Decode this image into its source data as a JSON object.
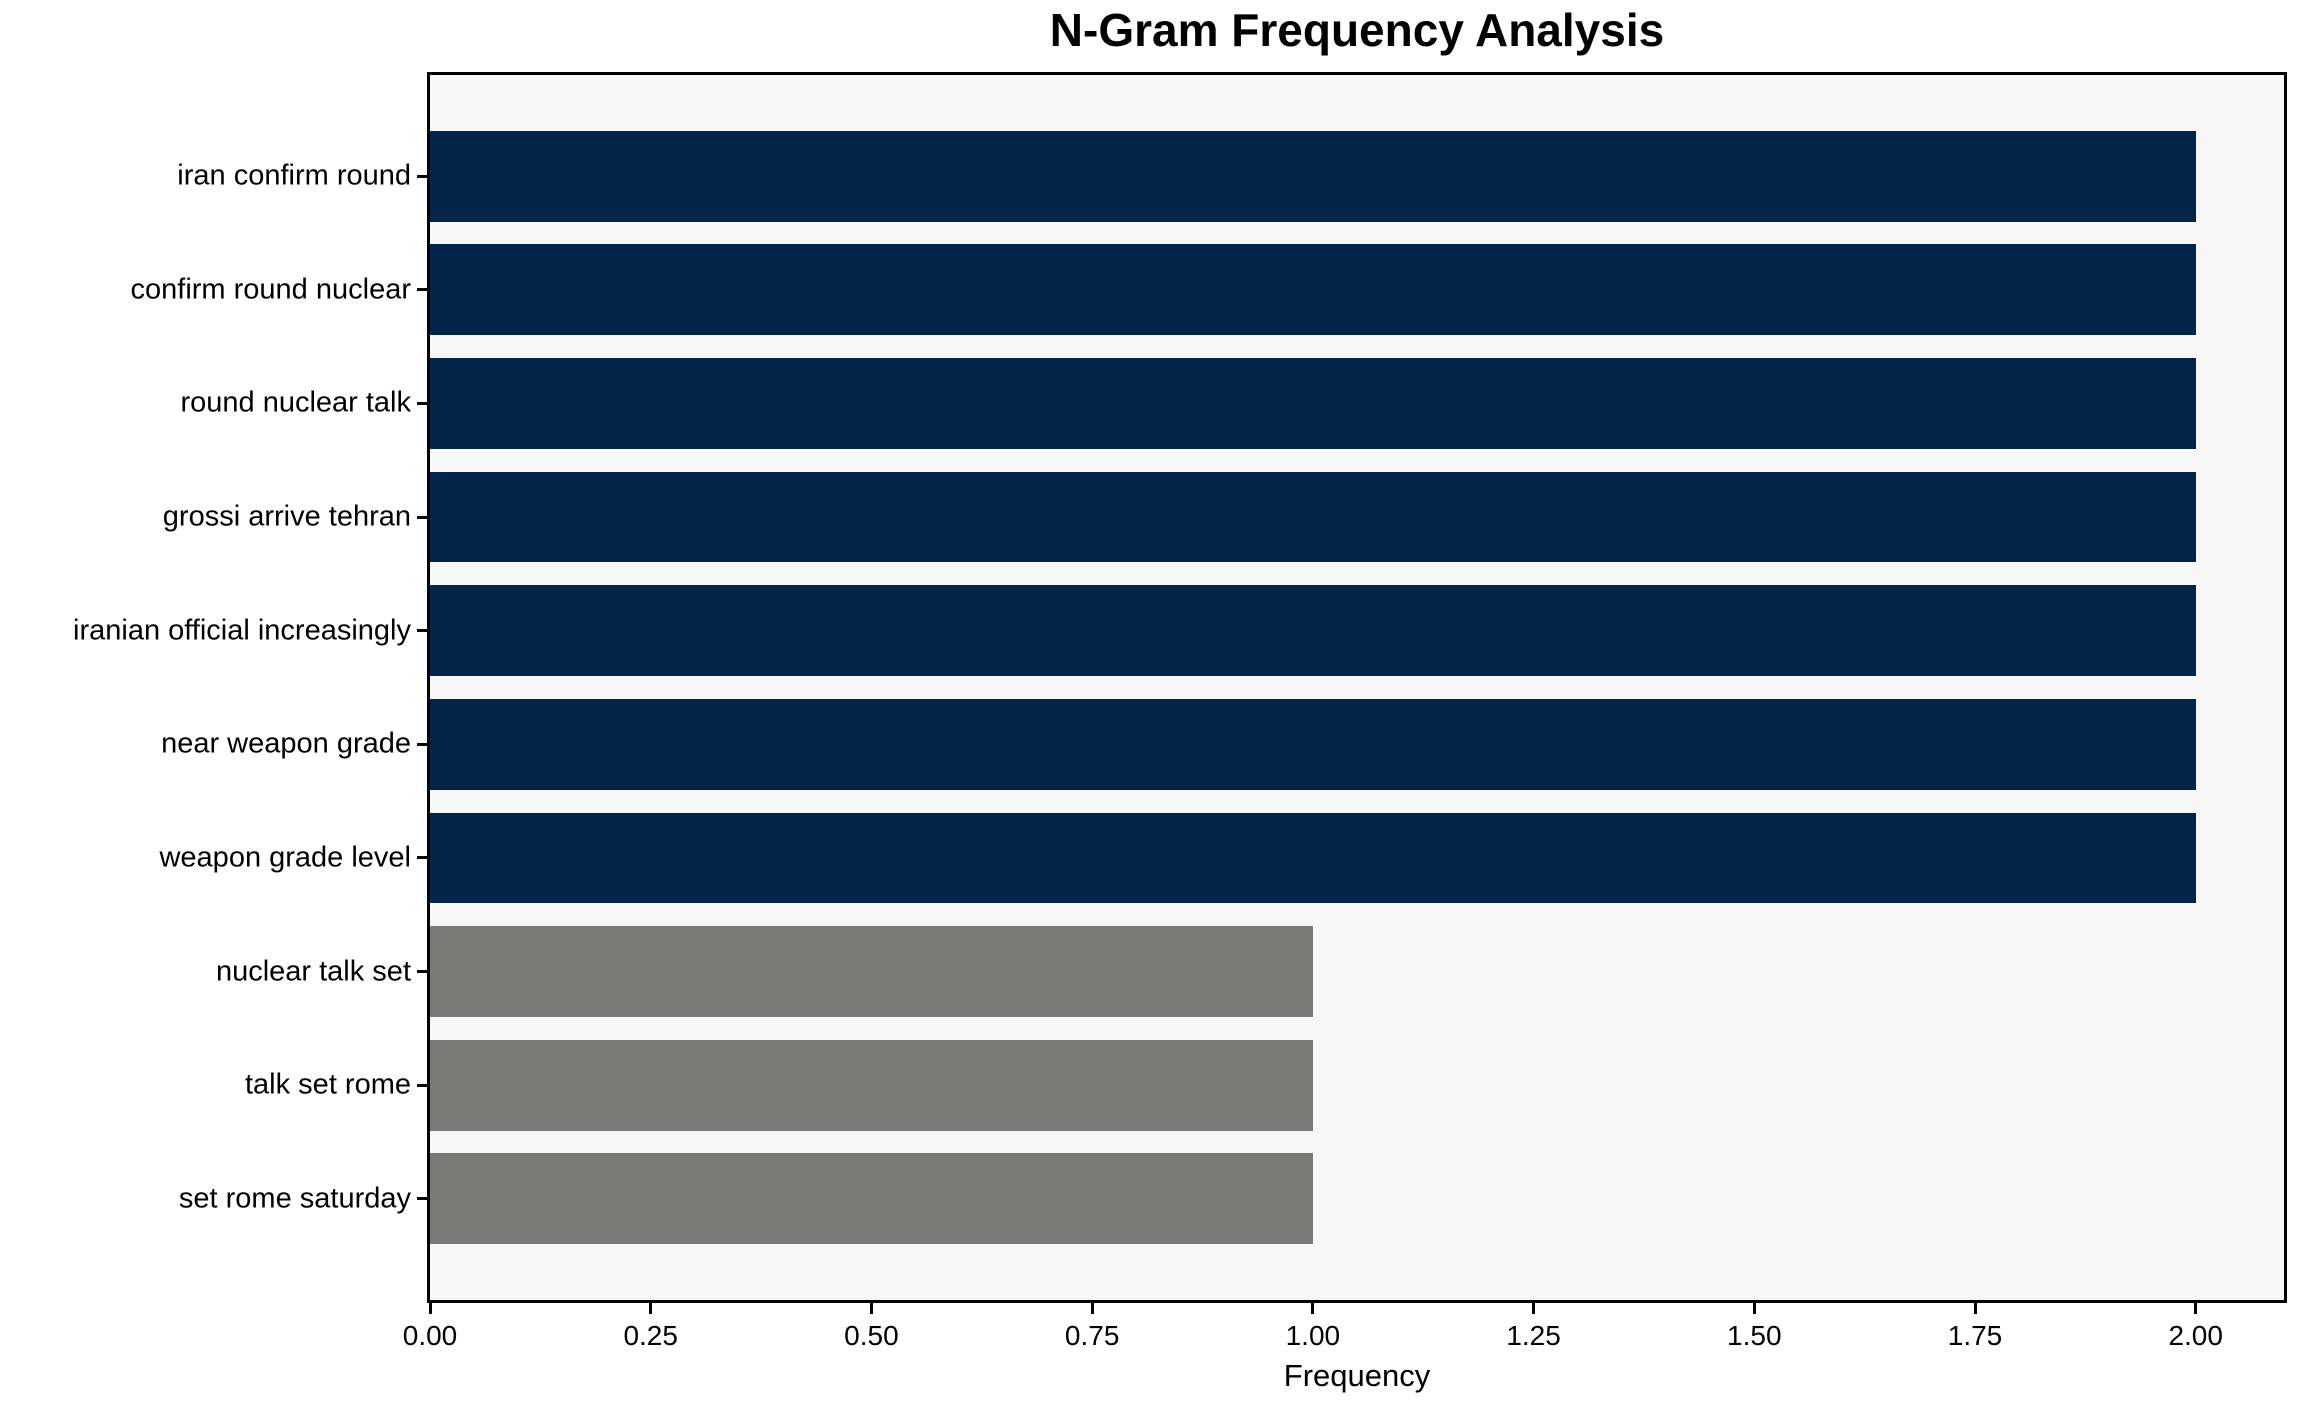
{
  "chart_data": {
    "type": "bar",
    "orientation": "horizontal",
    "title": "N-Gram Frequency Analysis",
    "xlabel": "Frequency",
    "ylabel": "",
    "categories": [
      "iran confirm round",
      "confirm round nuclear",
      "round nuclear talk",
      "grossi arrive tehran",
      "iranian official increasingly",
      "near weapon grade",
      "weapon grade level",
      "nuclear talk set",
      "talk set rome",
      "set rome saturday"
    ],
    "values": [
      2,
      2,
      2,
      2,
      2,
      2,
      2,
      1,
      1,
      1
    ],
    "bar_colors": [
      "#02234a",
      "#02234a",
      "#02234a",
      "#02234a",
      "#02234a",
      "#02234a",
      "#02234a",
      "#7a7a78",
      "#7a7a78",
      "#7a7a78"
    ],
    "xlim": [
      0,
      2.1
    ],
    "xticks": [
      {
        "value": 0.0,
        "label": "0.00"
      },
      {
        "value": 0.25,
        "label": "0.25"
      },
      {
        "value": 0.5,
        "label": "0.50"
      },
      {
        "value": 0.75,
        "label": "0.75"
      },
      {
        "value": 1.0,
        "label": "1.00"
      },
      {
        "value": 1.25,
        "label": "1.25"
      },
      {
        "value": 1.5,
        "label": "1.50"
      },
      {
        "value": 1.75,
        "label": "1.75"
      },
      {
        "value": 2.0,
        "label": "2.00"
      }
    ],
    "grid": false,
    "legend_position": "none",
    "colors": {
      "bar_high": "#02234a",
      "bar_low": "#7a7a78",
      "plot_background": "#f7f7f7",
      "figure_background": "#ffffff",
      "axis": "#000000",
      "text": "#000000"
    }
  }
}
